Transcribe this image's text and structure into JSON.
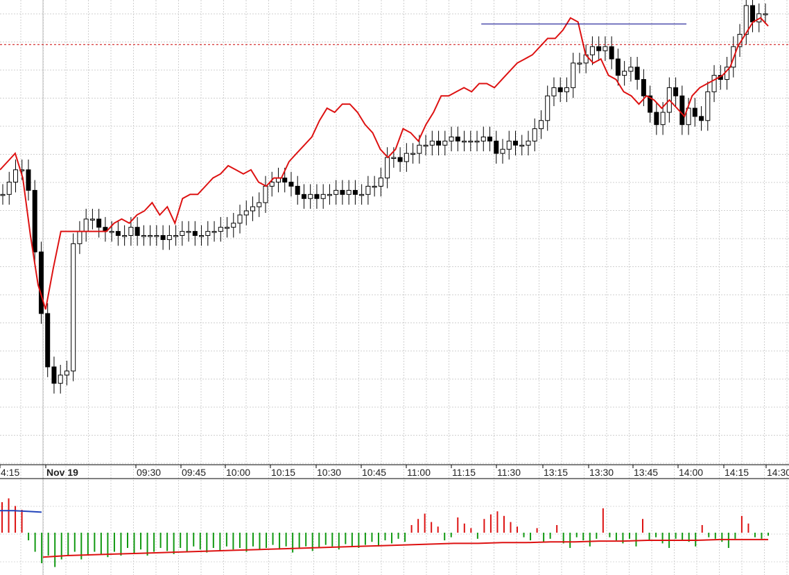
{
  "chart_data": [
    {
      "type": "candlestick",
      "panel": "price",
      "title": "",
      "xlabel": "",
      "ylabel": "",
      "grid": true,
      "legend": "none",
      "x_tick_labels": [
        "4:15",
        "Nov 19",
        "09:30",
        "09:45",
        "10:00",
        "10:15",
        "10:30",
        "10:45",
        "11:00",
        "11:15",
        "11:30",
        "13:15",
        "13:30",
        "13:45",
        "14:00",
        "14:15",
        "14:30"
      ],
      "session_break_label": "Nov 19",
      "ylim": [
        0,
        100
      ],
      "up_color": "#ffffff",
      "down_color": "#000000",
      "candles_close": [
        54,
        57,
        60,
        60,
        55,
        40,
        25,
        12,
        8,
        10,
        11,
        42,
        45,
        48,
        48,
        46,
        45,
        45,
        44,
        44,
        46,
        44,
        44,
        44,
        44,
        43,
        44,
        44,
        45,
        45,
        44,
        44,
        45,
        45,
        46,
        46,
        47,
        49,
        50,
        51,
        52,
        56,
        57,
        58,
        57,
        56,
        54,
        53,
        54,
        53,
        54,
        54,
        55,
        54,
        55,
        54,
        54,
        56,
        56,
        58,
        63,
        63,
        62,
        64,
        64,
        66,
        66,
        67,
        66,
        67,
        68,
        67,
        67,
        67,
        67,
        68,
        67,
        64,
        65,
        67,
        66,
        66,
        67,
        70,
        72,
        78,
        80,
        79,
        80,
        86,
        86,
        88,
        90,
        89,
        90,
        87,
        83,
        84,
        85,
        82,
        78,
        74,
        71,
        74,
        80,
        78,
        71,
        75,
        73,
        72,
        79,
        83,
        82,
        85,
        90,
        93,
        100,
        96,
        98,
        98
      ]
    },
    {
      "type": "line",
      "panel": "price",
      "name": "",
      "color": "#dd1111",
      "values": [
        60,
        62,
        64,
        58,
        44,
        32,
        26,
        36,
        45,
        45,
        45,
        45,
        45,
        45,
        45,
        47,
        48,
        47,
        49,
        50,
        52,
        49,
        51,
        47,
        53,
        54,
        54,
        56,
        58,
        59,
        61,
        60,
        59,
        60,
        57,
        56,
        58,
        58,
        62,
        64,
        66,
        68,
        72,
        75,
        74,
        76,
        76,
        74,
        71,
        69,
        65,
        63,
        65,
        70,
        69,
        67,
        71,
        74,
        78,
        78,
        79,
        80,
        79,
        81,
        81,
        80,
        82,
        84,
        86,
        87,
        88,
        90,
        92,
        92,
        94,
        97,
        96,
        88,
        86,
        87,
        83,
        82,
        79,
        78,
        76,
        78,
        77,
        75,
        77,
        75,
        73,
        78,
        80,
        81,
        82,
        83,
        85,
        90,
        93,
        96,
        97,
        95
      ]
    },
    {
      "type": "line",
      "panel": "price",
      "name": "",
      "style": "horizontal-reference",
      "color": "#000088",
      "value": 95.5,
      "x_range_fraction": [
        0.61,
        0.87
      ]
    },
    {
      "type": "line",
      "panel": "price",
      "name": "",
      "style": "dashed-reference",
      "color": "#cc0000",
      "value": 90.5
    },
    {
      "type": "bar",
      "panel": "volume",
      "title": "",
      "name": "",
      "up_color": "#dd1111",
      "down_color": "#119911",
      "values": [
        40,
        45,
        35,
        30,
        -10,
        -25,
        -40,
        -30,
        -45,
        -35,
        -30,
        -25,
        -35,
        -30,
        -25,
        -28,
        -32,
        -25,
        -30,
        -20,
        -28,
        -22,
        -30,
        -25,
        -20,
        -24,
        -28,
        -20,
        -25,
        -18,
        -22,
        -26,
        -20,
        -24,
        -18,
        -22,
        -20,
        -25,
        -18,
        -22,
        -20,
        -16,
        -22,
        -18,
        -26,
        -20,
        -18,
        -24,
        -20,
        -16,
        -18,
        -22,
        -15,
        -18,
        -20,
        -16,
        -12,
        -18,
        -10,
        -14,
        -8,
        -12,
        10,
        18,
        25,
        14,
        8,
        -10,
        -6,
        20,
        12,
        6,
        -8,
        18,
        24,
        28,
        22,
        14,
        8,
        -6,
        -10,
        6,
        -12,
        -8,
        10,
        -14,
        -20,
        -6,
        -10,
        -18,
        -8,
        32,
        -6,
        -10,
        -14,
        -8,
        -18,
        18,
        -10,
        -6,
        -14,
        -20,
        -8,
        -10,
        -12,
        -18,
        10,
        -6,
        -8,
        -12,
        -20,
        -8,
        22,
        12,
        -6,
        -8,
        -4
      ]
    },
    {
      "type": "line",
      "panel": "volume",
      "name": "",
      "color": "#dd1111",
      "values": [
        -32,
        -30,
        -29,
        -28,
        -27,
        -26,
        -25,
        -24,
        -23,
        -22,
        -21,
        -20,
        -19,
        -18,
        -17,
        -16,
        -15,
        -14,
        -14,
        -13,
        -13,
        -12,
        -12,
        -11,
        -11,
        -10,
        -10,
        -10,
        -9,
        -9,
        -9
      ]
    },
    {
      "type": "line",
      "panel": "volume",
      "name": "",
      "color": "#2244bb",
      "values": [
        18,
        18,
        17,
        16
      ]
    }
  ]
}
